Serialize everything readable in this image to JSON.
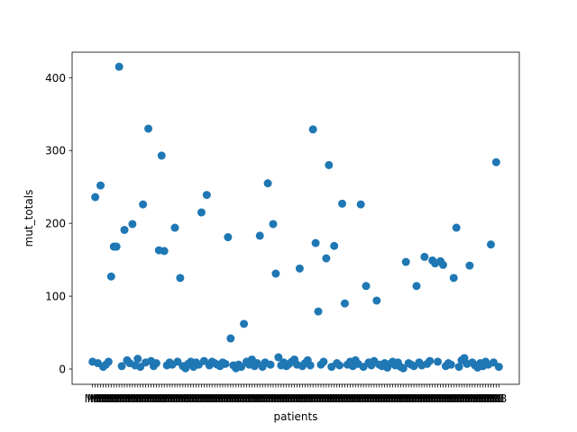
{
  "chart_data": {
    "type": "scatter",
    "xlabel": "patients",
    "ylabel": "mut_totals",
    "ylim": [
      -21,
      435
    ],
    "yticks": [
      0,
      100,
      200,
      300,
      400
    ],
    "x_tick_text": "M8",
    "color": "#1f77b4",
    "points": [
      {
        "x": 0,
        "y": 10
      },
      {
        "x": 1,
        "y": 236
      },
      {
        "x": 2,
        "y": 8
      },
      {
        "x": 3,
        "y": 252
      },
      {
        "x": 4,
        "y": 3
      },
      {
        "x": 5,
        "y": 6
      },
      {
        "x": 6,
        "y": 10
      },
      {
        "x": 7,
        "y": 127
      },
      {
        "x": 8,
        "y": 168
      },
      {
        "x": 9,
        "y": 168
      },
      {
        "x": 10,
        "y": 415
      },
      {
        "x": 11,
        "y": 4
      },
      {
        "x": 12,
        "y": 191
      },
      {
        "x": 13,
        "y": 12
      },
      {
        "x": 14,
        "y": 8
      },
      {
        "x": 15,
        "y": 199
      },
      {
        "x": 16,
        "y": 5
      },
      {
        "x": 17,
        "y": 14
      },
      {
        "x": 18,
        "y": 3
      },
      {
        "x": 19,
        "y": 226
      },
      {
        "x": 20,
        "y": 9
      },
      {
        "x": 21,
        "y": 330
      },
      {
        "x": 22,
        "y": 11
      },
      {
        "x": 23,
        "y": 4
      },
      {
        "x": 24,
        "y": 8
      },
      {
        "x": 25,
        "y": 163
      },
      {
        "x": 26,
        "y": 293
      },
      {
        "x": 27,
        "y": 162
      },
      {
        "x": 28,
        "y": 5
      },
      {
        "x": 29,
        "y": 9
      },
      {
        "x": 30,
        "y": 6
      },
      {
        "x": 31,
        "y": 194
      },
      {
        "x": 32,
        "y": 10
      },
      {
        "x": 33,
        "y": 125
      },
      {
        "x": 34,
        "y": 4
      },
      {
        "x": 35,
        "y": 1
      },
      {
        "x": 36,
        "y": 7
      },
      {
        "x": 37,
        "y": 10
      },
      {
        "x": 38,
        "y": 3
      },
      {
        "x": 39,
        "y": 9
      },
      {
        "x": 40,
        "y": 6
      },
      {
        "x": 41,
        "y": 215
      },
      {
        "x": 42,
        "y": 11
      },
      {
        "x": 43,
        "y": 239
      },
      {
        "x": 44,
        "y": 5
      },
      {
        "x": 45,
        "y": 10
      },
      {
        "x": 46,
        "y": 8
      },
      {
        "x": 47,
        "y": 6
      },
      {
        "x": 48,
        "y": 4
      },
      {
        "x": 49,
        "y": 9
      },
      {
        "x": 50,
        "y": 7
      },
      {
        "x": 51,
        "y": 181
      },
      {
        "x": 52,
        "y": 42
      },
      {
        "x": 53,
        "y": 5
      },
      {
        "x": 54,
        "y": 1
      },
      {
        "x": 55,
        "y": 6
      },
      {
        "x": 56,
        "y": 3
      },
      {
        "x": 57,
        "y": 62
      },
      {
        "x": 58,
        "y": 10
      },
      {
        "x": 59,
        "y": 6
      },
      {
        "x": 60,
        "y": 13
      },
      {
        "x": 61,
        "y": 4
      },
      {
        "x": 62,
        "y": 8
      },
      {
        "x": 63,
        "y": 183
      },
      {
        "x": 64,
        "y": 3
      },
      {
        "x": 65,
        "y": 9
      },
      {
        "x": 66,
        "y": 255
      },
      {
        "x": 67,
        "y": 6
      },
      {
        "x": 68,
        "y": 199
      },
      {
        "x": 69,
        "y": 131
      },
      {
        "x": 70,
        "y": 16
      },
      {
        "x": 71,
        "y": 5
      },
      {
        "x": 72,
        "y": 9
      },
      {
        "x": 73,
        "y": 4
      },
      {
        "x": 74,
        "y": 7
      },
      {
        "x": 75,
        "y": 10
      },
      {
        "x": 76,
        "y": 13
      },
      {
        "x": 77,
        "y": 6
      },
      {
        "x": 78,
        "y": 138
      },
      {
        "x": 79,
        "y": 4
      },
      {
        "x": 80,
        "y": 8
      },
      {
        "x": 81,
        "y": 12
      },
      {
        "x": 82,
        "y": 5
      },
      {
        "x": 83,
        "y": 329
      },
      {
        "x": 84,
        "y": 173
      },
      {
        "x": 85,
        "y": 79
      },
      {
        "x": 86,
        "y": 6
      },
      {
        "x": 87,
        "y": 10
      },
      {
        "x": 88,
        "y": 152
      },
      {
        "x": 89,
        "y": 280
      },
      {
        "x": 90,
        "y": 3
      },
      {
        "x": 91,
        "y": 169
      },
      {
        "x": 92,
        "y": 8
      },
      {
        "x": 93,
        "y": 5
      },
      {
        "x": 94,
        "y": 227
      },
      {
        "x": 95,
        "y": 90
      },
      {
        "x": 96,
        "y": 6
      },
      {
        "x": 97,
        "y": 10
      },
      {
        "x": 98,
        "y": 4
      },
      {
        "x": 99,
        "y": 12
      },
      {
        "x": 100,
        "y": 7
      },
      {
        "x": 101,
        "y": 226
      },
      {
        "x": 102,
        "y": 3
      },
      {
        "x": 103,
        "y": 114
      },
      {
        "x": 104,
        "y": 9
      },
      {
        "x": 105,
        "y": 5
      },
      {
        "x": 106,
        "y": 11
      },
      {
        "x": 107,
        "y": 94
      },
      {
        "x": 108,
        "y": 6
      },
      {
        "x": 109,
        "y": 4
      },
      {
        "x": 110,
        "y": 8
      },
      {
        "x": 111,
        "y": 2
      },
      {
        "x": 112,
        "y": 7
      },
      {
        "x": 113,
        "y": 10
      },
      {
        "x": 114,
        "y": 5
      },
      {
        "x": 115,
        "y": 9
      },
      {
        "x": 116,
        "y": 3
      },
      {
        "x": 117,
        "y": 1
      },
      {
        "x": 118,
        "y": 147
      },
      {
        "x": 119,
        "y": 8
      },
      {
        "x": 120,
        "y": 6
      },
      {
        "x": 121,
        "y": 4
      },
      {
        "x": 122,
        "y": 114
      },
      {
        "x": 123,
        "y": 9
      },
      {
        "x": 124,
        "y": 5
      },
      {
        "x": 125,
        "y": 154
      },
      {
        "x": 126,
        "y": 7
      },
      {
        "x": 127,
        "y": 11
      },
      {
        "x": 128,
        "y": 149
      },
      {
        "x": 129,
        "y": 145
      },
      {
        "x": 130,
        "y": 10
      },
      {
        "x": 131,
        "y": 148
      },
      {
        "x": 132,
        "y": 143
      },
      {
        "x": 133,
        "y": 4
      },
      {
        "x": 134,
        "y": 8
      },
      {
        "x": 135,
        "y": 6
      },
      {
        "x": 136,
        "y": 125
      },
      {
        "x": 137,
        "y": 194
      },
      {
        "x": 138,
        "y": 3
      },
      {
        "x": 139,
        "y": 12
      },
      {
        "x": 140,
        "y": 15
      },
      {
        "x": 141,
        "y": 7
      },
      {
        "x": 142,
        "y": 142
      },
      {
        "x": 143,
        "y": 9
      },
      {
        "x": 144,
        "y": 5
      },
      {
        "x": 145,
        "y": 2
      },
      {
        "x": 146,
        "y": 8
      },
      {
        "x": 147,
        "y": 4
      },
      {
        "x": 148,
        "y": 10
      },
      {
        "x": 149,
        "y": 6
      },
      {
        "x": 150,
        "y": 171
      },
      {
        "x": 151,
        "y": 9
      },
      {
        "x": 152,
        "y": 284
      },
      {
        "x": 153,
        "y": 3
      }
    ]
  }
}
